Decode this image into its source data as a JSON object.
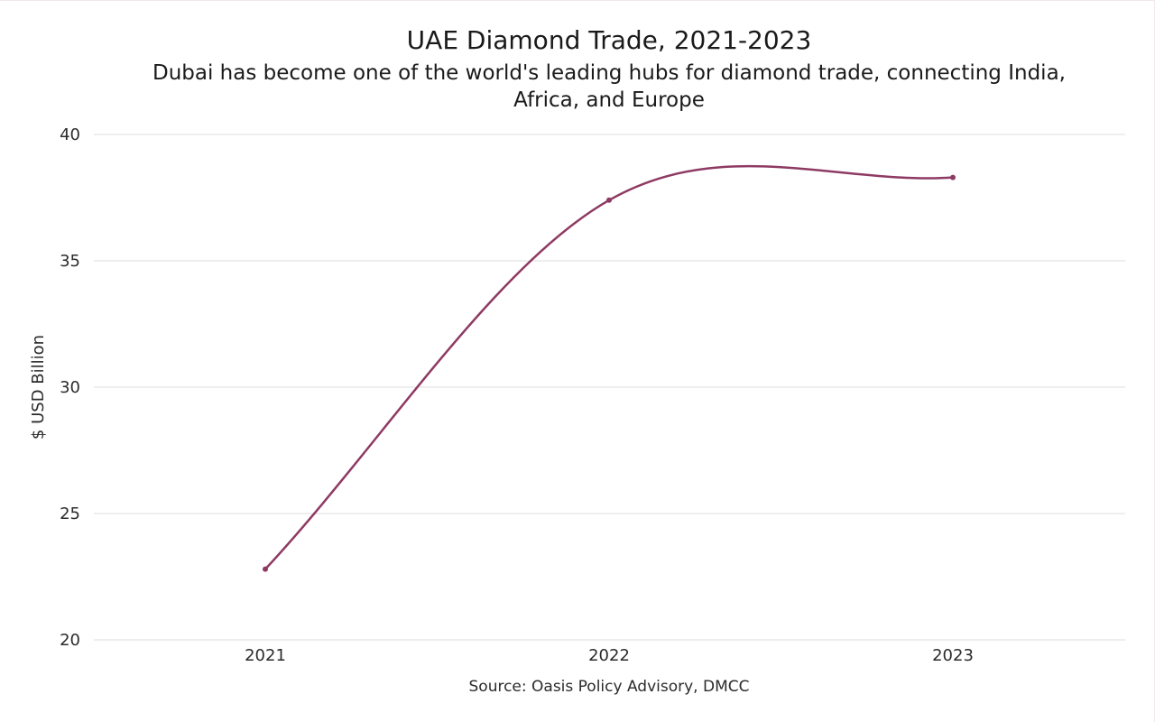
{
  "chart_data": {
    "type": "line",
    "title": "UAE Diamond Trade, 2021-2023",
    "subtitle_lines": [
      "Dubai has become one of the world's leading hubs for diamond trade, connecting India,",
      "Africa, and Europe"
    ],
    "x": [
      "2021",
      "2022",
      "2023"
    ],
    "series": [
      {
        "name": "UAE diamond trade",
        "values": [
          22.8,
          37.4,
          38.3
        ]
      }
    ],
    "ylabel": "$ USD Billion",
    "xlabel": "",
    "ylim": [
      20,
      40
    ],
    "yticks": [
      "20",
      "25",
      "30",
      "35",
      "40"
    ],
    "grid": true,
    "source": "Source: Oasis Policy Advisory, DMCC"
  },
  "colors": {
    "line": "#8e3a63",
    "grid": "#dcdcdc"
  }
}
